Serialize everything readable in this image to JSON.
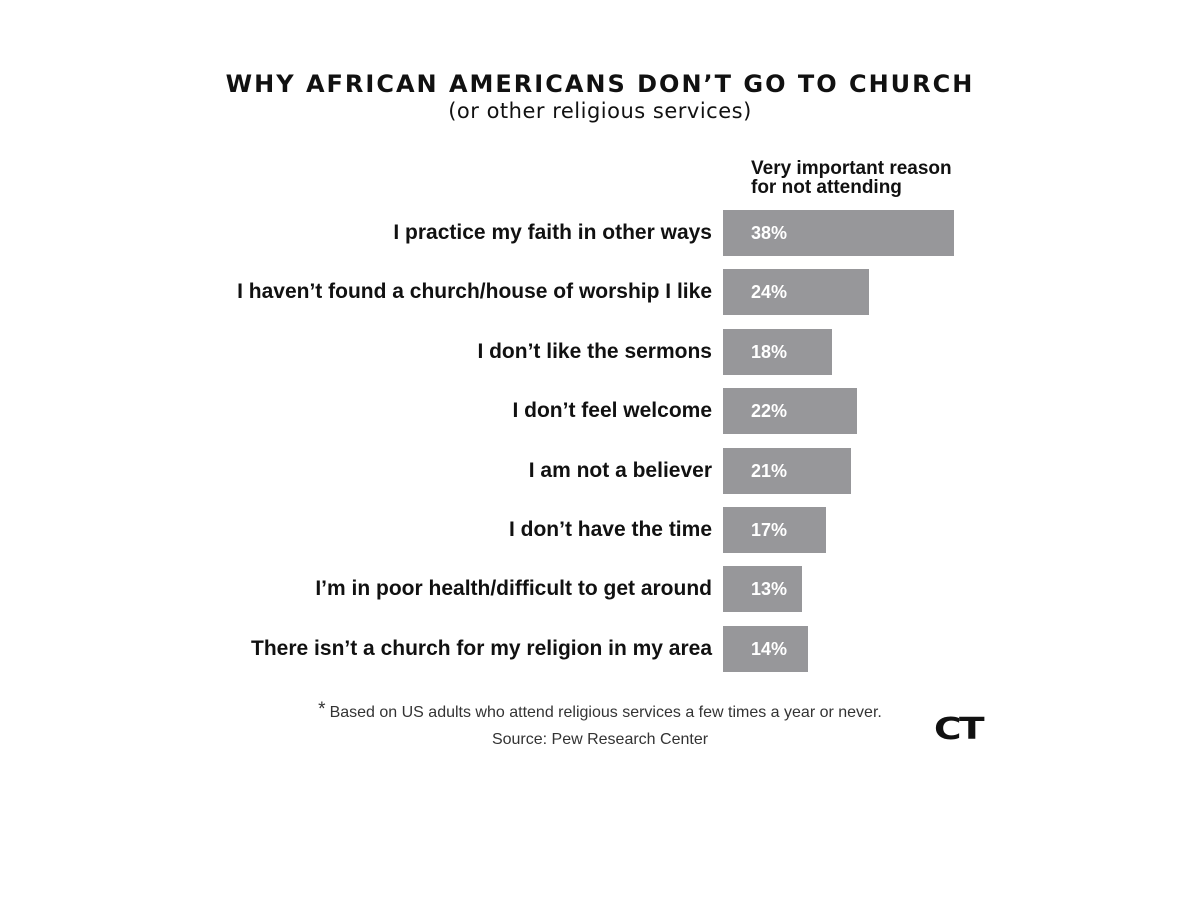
{
  "title": "WHY AFRICAN AMERICANS DON’T GO TO CHURCH",
  "subtitle": "(or other religious services)",
  "column_header": [
    "Very important reason",
    "for not attending"
  ],
  "footnote_star": "*",
  "footnote": "Based on US adults who attend religious services a few times a year or never.",
  "source": "Source: Pew Research Center",
  "logo": "CT",
  "colors": {
    "bar": "#97979a",
    "bar_label": "#ffffff",
    "text": "#111111"
  },
  "chart_data": {
    "type": "bar",
    "orientation": "horizontal",
    "title": "WHY AFRICAN AMERICANS DON’T GO TO CHURCH",
    "subtitle": "(or other religious services)",
    "categories": [
      "I practice my faith in other ways",
      "I haven’t found a church/house of worship I like",
      "I don’t like the sermons",
      "I don’t feel welcome",
      "I am not a believer",
      "I don’t have the time",
      "I’m in poor health/difficult to get around",
      "There isn’t a church for my religion in my area"
    ],
    "values": [
      38,
      24,
      18,
      22,
      21,
      17,
      13,
      14
    ],
    "value_labels": [
      "38%",
      "24%",
      "18%",
      "22%",
      "21%",
      "17%",
      "13%",
      "14%"
    ],
    "unit": "%",
    "xlim": [
      0,
      38
    ],
    "grid": false,
    "legend": "none"
  }
}
